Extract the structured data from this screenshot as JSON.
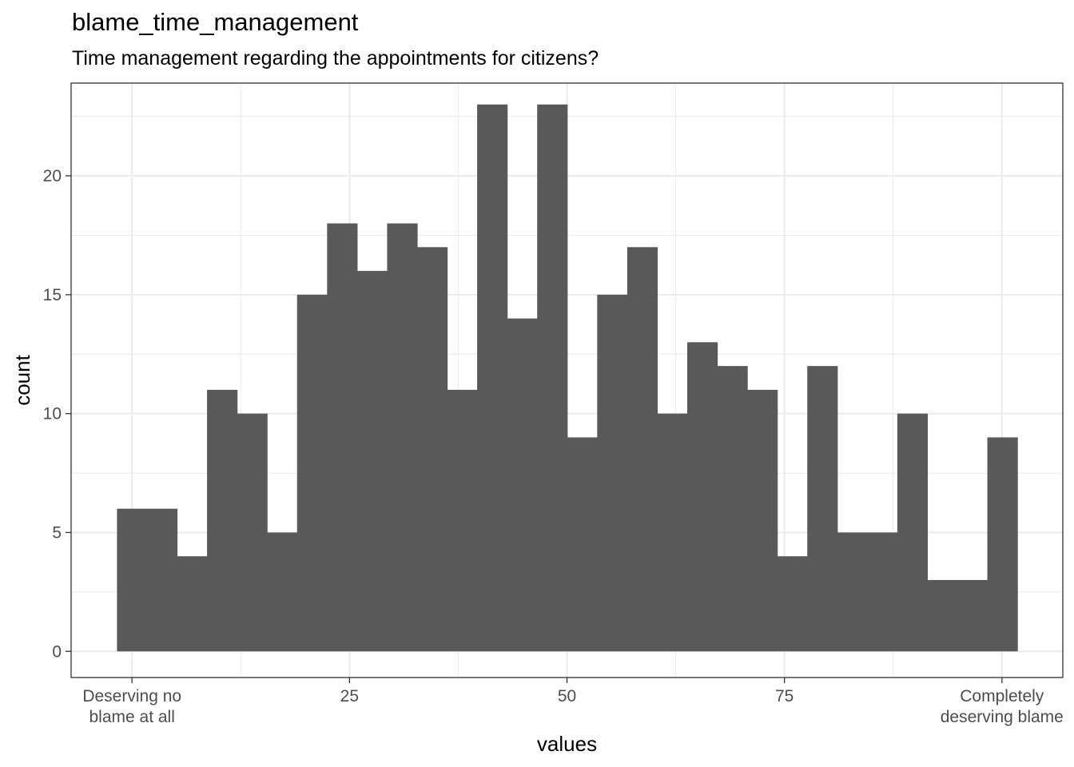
{
  "chart_data": {
    "type": "bar",
    "title": "blame_time_management",
    "subtitle": "Time management regarding the appointments for citizens?",
    "xlabel": "values",
    "ylabel": "count",
    "xlim": [
      -7,
      107
    ],
    "ylim": [
      -1.1,
      23.9
    ],
    "bin_width": 3.45,
    "bin_start": -1.725,
    "values": [
      6,
      6,
      4,
      11,
      10,
      5,
      15,
      18,
      16,
      18,
      17,
      11,
      23,
      14,
      23,
      9,
      15,
      17,
      10,
      13,
      12,
      11,
      4,
      12,
      5,
      5,
      10,
      3,
      3,
      9
    ],
    "y_ticks": [
      0,
      5,
      10,
      15,
      20
    ],
    "x_ticks": [
      {
        "value": 0,
        "label": [
          "Deserving no",
          "blame at all"
        ]
      },
      {
        "value": 25,
        "label": [
          "25"
        ]
      },
      {
        "value": 50,
        "label": [
          "50"
        ]
      },
      {
        "value": 75,
        "label": [
          "75"
        ]
      },
      {
        "value": 100,
        "label": [
          "Completely",
          "deserving blame"
        ]
      }
    ],
    "grid": true,
    "bar_color": "#595959",
    "panel_border_color": "#333333",
    "grid_color": "#ebebeb"
  }
}
